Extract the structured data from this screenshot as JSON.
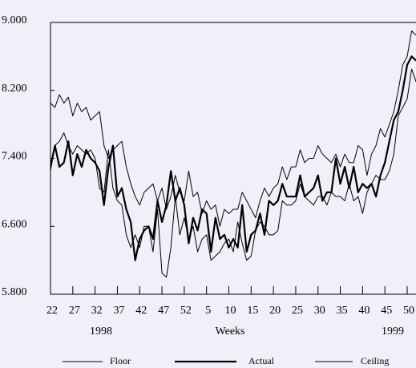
{
  "chart_data": {
    "type": "line",
    "xlabel": "Weeks",
    "year_labels": [
      "1998",
      "1999"
    ],
    "categories": [
      "22",
      null,
      null,
      null,
      null,
      "27",
      null,
      null,
      null,
      null,
      "32",
      null,
      null,
      null,
      null,
      "37",
      null,
      null,
      null,
      null,
      "42",
      null,
      null,
      null,
      null,
      "47",
      null,
      null,
      null,
      null,
      "52",
      null,
      null,
      null,
      null,
      "5",
      null,
      null,
      null,
      null,
      "10",
      null,
      null,
      null,
      null,
      "15",
      null,
      null,
      null,
      null,
      "20",
      null,
      null,
      null,
      null,
      "25",
      null,
      null,
      null,
      null,
      "30",
      null,
      null,
      null,
      null,
      "35",
      null,
      null,
      null,
      null,
      "40",
      null,
      null,
      null,
      null,
      "45",
      null,
      null,
      null,
      null,
      "50",
      null,
      null
    ],
    "series": [
      {
        "name": "Floor",
        "color": "#000000",
        "line_width": 1,
        "values": [
          7.25,
          7.55,
          7.6,
          7.7,
          7.55,
          7.45,
          7.55,
          7.5,
          7.45,
          7.5,
          7.4,
          7.05,
          7.0,
          7.5,
          7.05,
          6.9,
          6.85,
          6.5,
          6.35,
          6.5,
          6.35,
          6.6,
          6.6,
          6.3,
          6.8,
          6.05,
          6.0,
          6.35,
          6.95,
          6.5,
          6.7,
          6.45,
          6.6,
          6.3,
          6.45,
          6.5,
          6.2,
          6.25,
          6.3,
          6.4,
          6.45,
          6.3,
          6.65,
          6.4,
          6.2,
          6.25,
          6.55,
          6.65,
          6.6,
          6.5,
          6.5,
          6.55,
          6.9,
          6.85,
          6.85,
          6.9,
          7.1,
          6.95,
          6.9,
          6.85,
          6.95,
          6.95,
          6.85,
          7.0,
          6.95,
          6.95,
          6.9,
          7.1,
          6.9,
          6.95,
          6.75,
          7.0,
          7.1,
          7.2,
          7.15,
          7.15,
          7.25,
          7.45,
          7.9,
          8.0,
          8.1,
          8.45,
          8.3
        ]
      },
      {
        "name": "Actual",
        "color": "#000000",
        "line_width": 2.2,
        "values": [
          7.3,
          7.55,
          7.3,
          7.35,
          7.6,
          7.2,
          7.45,
          7.3,
          7.5,
          7.4,
          7.35,
          7.25,
          6.85,
          7.3,
          7.55,
          6.95,
          7.05,
          6.8,
          6.65,
          6.2,
          6.45,
          6.55,
          6.6,
          6.45,
          6.9,
          6.65,
          6.85,
          7.25,
          6.9,
          7.05,
          6.85,
          6.4,
          6.7,
          6.55,
          6.8,
          6.75,
          6.3,
          6.7,
          6.45,
          6.5,
          6.35,
          6.45,
          6.35,
          6.85,
          6.3,
          6.5,
          6.55,
          6.75,
          6.5,
          6.9,
          6.85,
          6.9,
          7.1,
          6.95,
          6.95,
          6.95,
          7.2,
          6.95,
          7.0,
          7.05,
          7.2,
          6.9,
          7.0,
          7.0,
          7.4,
          7.1,
          7.3,
          7.05,
          7.3,
          7.0,
          7.1,
          7.05,
          7.1,
          6.95,
          7.2,
          7.35,
          7.6,
          7.85,
          7.95,
          8.2,
          8.5,
          8.6,
          8.55
        ]
      },
      {
        "name": "Ceiling",
        "color": "#000000",
        "line_width": 1,
        "values": [
          8.05,
          8.0,
          8.15,
          8.05,
          8.12,
          7.9,
          8.05,
          7.95,
          8.0,
          7.85,
          7.9,
          7.95,
          7.55,
          7.4,
          7.5,
          7.55,
          7.6,
          7.3,
          7.1,
          6.95,
          6.85,
          7.0,
          7.05,
          7.1,
          6.9,
          7.05,
          6.8,
          6.95,
          7.2,
          7.0,
          6.9,
          7.25,
          6.95,
          7.0,
          6.75,
          6.9,
          6.8,
          6.85,
          6.6,
          6.8,
          6.75,
          6.8,
          6.8,
          7.0,
          6.9,
          6.8,
          6.7,
          6.9,
          7.05,
          6.95,
          7.05,
          7.1,
          7.3,
          7.15,
          7.3,
          7.3,
          7.5,
          7.35,
          7.4,
          7.4,
          7.55,
          7.45,
          7.4,
          7.35,
          7.45,
          7.3,
          7.45,
          7.35,
          7.35,
          7.55,
          7.5,
          7.2,
          7.45,
          7.55,
          7.75,
          7.65,
          7.8,
          7.95,
          8.2,
          8.5,
          8.6,
          8.9,
          8.85
        ]
      }
    ],
    "ylim": [
      5.8,
      9.0
    ],
    "yticks": [
      {
        "value": 5.8,
        "label": "5.800"
      },
      {
        "value": 6.6,
        "label": "6.600"
      },
      {
        "value": 7.4,
        "label": "7.400"
      },
      {
        "value": 8.2,
        "label": "8.200"
      },
      {
        "value": 9.0,
        "label": "9.000"
      }
    ],
    "grid": false
  }
}
